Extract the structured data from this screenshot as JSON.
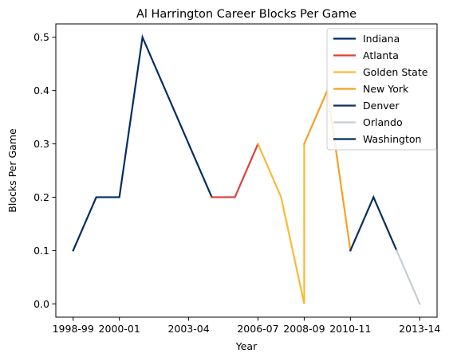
{
  "chart_data": {
    "type": "line",
    "title": "Al Harrington Career Blocks Per Game",
    "xlabel": "Year",
    "ylabel": "Blocks Per Game",
    "x": [
      "1998-99",
      "1999-00",
      "2000-01",
      "2001-02",
      "2002-03",
      "2003-04",
      "2004-05",
      "2005-06",
      "2006-07",
      "2007-08",
      "2008-09",
      "2009-10",
      "2010-11",
      "2011-12",
      "2012-13",
      "2013-14"
    ],
    "x_tick_labels": [
      "1998-99",
      "2000-01",
      "2003-04",
      "2006-07",
      "2008-09",
      "2010-11",
      "2013-14"
    ],
    "y_ticks": [
      0.0,
      0.1,
      0.2,
      0.3,
      0.4,
      0.5
    ],
    "y_tick_labels": [
      "0.0",
      "0.1",
      "0.2",
      "0.3",
      "0.4",
      "0.5"
    ],
    "ylim": [
      -0.025,
      0.525
    ],
    "legend_position": "top-right",
    "grid": false,
    "series": [
      {
        "name": "Indiana",
        "color": "#002d62",
        "points": [
          [
            0,
            0.1
          ],
          [
            1,
            0.2
          ],
          [
            2,
            0.2
          ],
          [
            3,
            0.5
          ],
          [
            4,
            0.4
          ],
          [
            5,
            0.3
          ],
          [
            6,
            0.2
          ]
        ]
      },
      {
        "name": "Atlanta",
        "color": "#d9423b",
        "points": [
          [
            6,
            0.2
          ],
          [
            7,
            0.2
          ],
          [
            8,
            0.3
          ]
        ]
      },
      {
        "name": "Golden State",
        "color": "#fcb933",
        "points": [
          [
            8,
            0.3
          ],
          [
            9,
            0.2
          ],
          [
            10,
            0.0
          ],
          [
            10,
            0.3
          ]
        ]
      },
      {
        "name": "New York",
        "color": "#f5a125",
        "points": [
          [
            10,
            0.3
          ],
          [
            11,
            0.4
          ],
          [
            12,
            0.1
          ]
        ]
      },
      {
        "name": "Denver",
        "color": "#0a2d58",
        "points": [
          [
            12,
            0.1
          ],
          [
            13,
            0.2
          ],
          [
            14,
            0.1
          ]
        ]
      },
      {
        "name": "Orlando",
        "color": "#c4ced4",
        "points": [
          [
            14,
            0.1
          ],
          [
            15,
            0.0
          ]
        ]
      },
      {
        "name": "Washington",
        "color": "#002b5c",
        "points": [
          [
            14,
            0.1
          ]
        ]
      }
    ]
  }
}
